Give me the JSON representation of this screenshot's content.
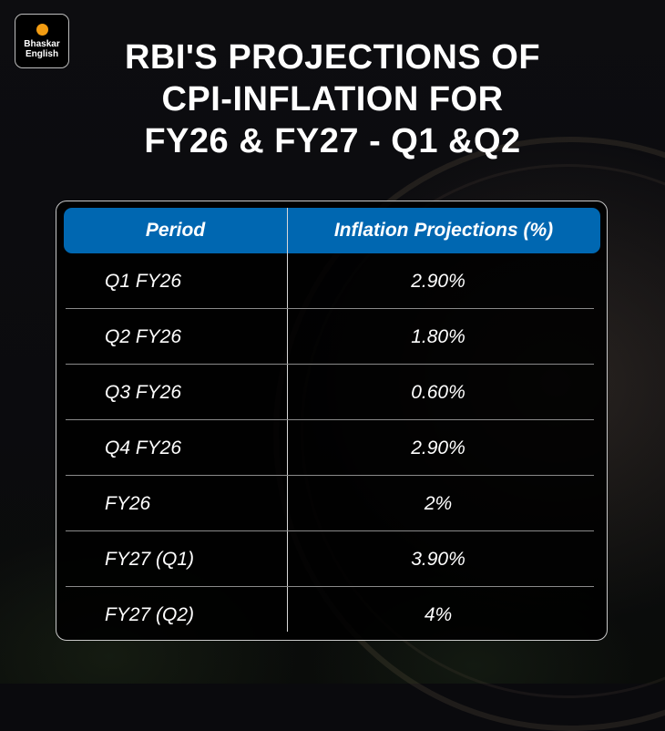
{
  "brand": {
    "logo_line1": "Bhaskar",
    "logo_line2": "English",
    "dot_color": "#f39c12"
  },
  "title": {
    "line1": "RBI'S PROJECTIONS OF",
    "line2": "CPI-INFLATION FOR",
    "line3": "FY26 & FY27 - Q1 &Q2"
  },
  "table": {
    "header_color": "#0067b1",
    "columns": [
      "Period",
      "Inflation Projections (%)"
    ],
    "rows": [
      {
        "period": "Q1 FY26",
        "value": "2.90%"
      },
      {
        "period": "Q2 FY26",
        "value": "1.80%"
      },
      {
        "period": "Q3 FY26",
        "value": "0.60%"
      },
      {
        "period": "Q4 FY26",
        "value": "2.90%"
      },
      {
        "period": "FY26",
        "value": "2%"
      },
      {
        "period": "FY27 (Q1)",
        "value": "3.90%"
      },
      {
        "period": "FY27 (Q2)",
        "value": "4%"
      }
    ]
  },
  "chart_data": {
    "type": "table",
    "title": "RBI'S PROJECTIONS OF CPI-INFLATION FOR FY26 & FY27 - Q1 &Q2",
    "columns": [
      "Period",
      "Inflation Projections (%)"
    ],
    "categories": [
      "Q1 FY26",
      "Q2 FY26",
      "Q3 FY26",
      "Q4 FY26",
      "FY26",
      "FY27 (Q1)",
      "FY27 (Q2)"
    ],
    "values": [
      2.9,
      1.8,
      0.6,
      2.9,
      2.0,
      3.9,
      4.0
    ],
    "unit": "%"
  }
}
